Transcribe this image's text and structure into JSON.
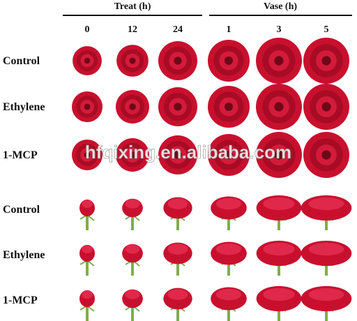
{
  "header": {
    "groups": [
      {
        "label": "Treat (h)"
      },
      {
        "label": "Vase (h)"
      }
    ],
    "columns": [
      "0",
      "12",
      "24",
      "1",
      "3",
      "5"
    ]
  },
  "rows": [
    "Control",
    "Ethylene",
    "1-MCP",
    "Control",
    "Ethylene",
    "1-MCP"
  ],
  "watermark": "hfqixing.en.alibaba.com"
}
